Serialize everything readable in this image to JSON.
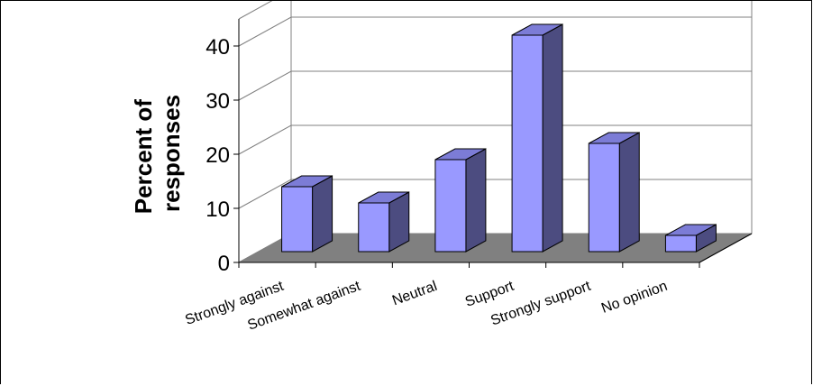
{
  "chart_data": {
    "type": "bar",
    "style": "3d-column",
    "title": "",
    "xlabel": "",
    "ylabel": [
      "Percent of",
      "responses"
    ],
    "categories": [
      "Strongly against",
      "Somewhat against",
      "Neutral",
      "Support",
      "Strongly support",
      "No opinion"
    ],
    "series": [
      {
        "values": [
          12,
          9,
          17,
          40,
          20,
          3
        ]
      }
    ],
    "ylim": [
      0,
      40
    ],
    "yticks": [
      0,
      10,
      20,
      30,
      40
    ],
    "grid": true,
    "legend": "none",
    "colors": {
      "bar_front": "#9999ff",
      "bar_top": "#7c7cd6",
      "bar_side": "#4c4c80",
      "floor": "#808080",
      "gridline": "#808080",
      "edge": "#000000"
    }
  }
}
